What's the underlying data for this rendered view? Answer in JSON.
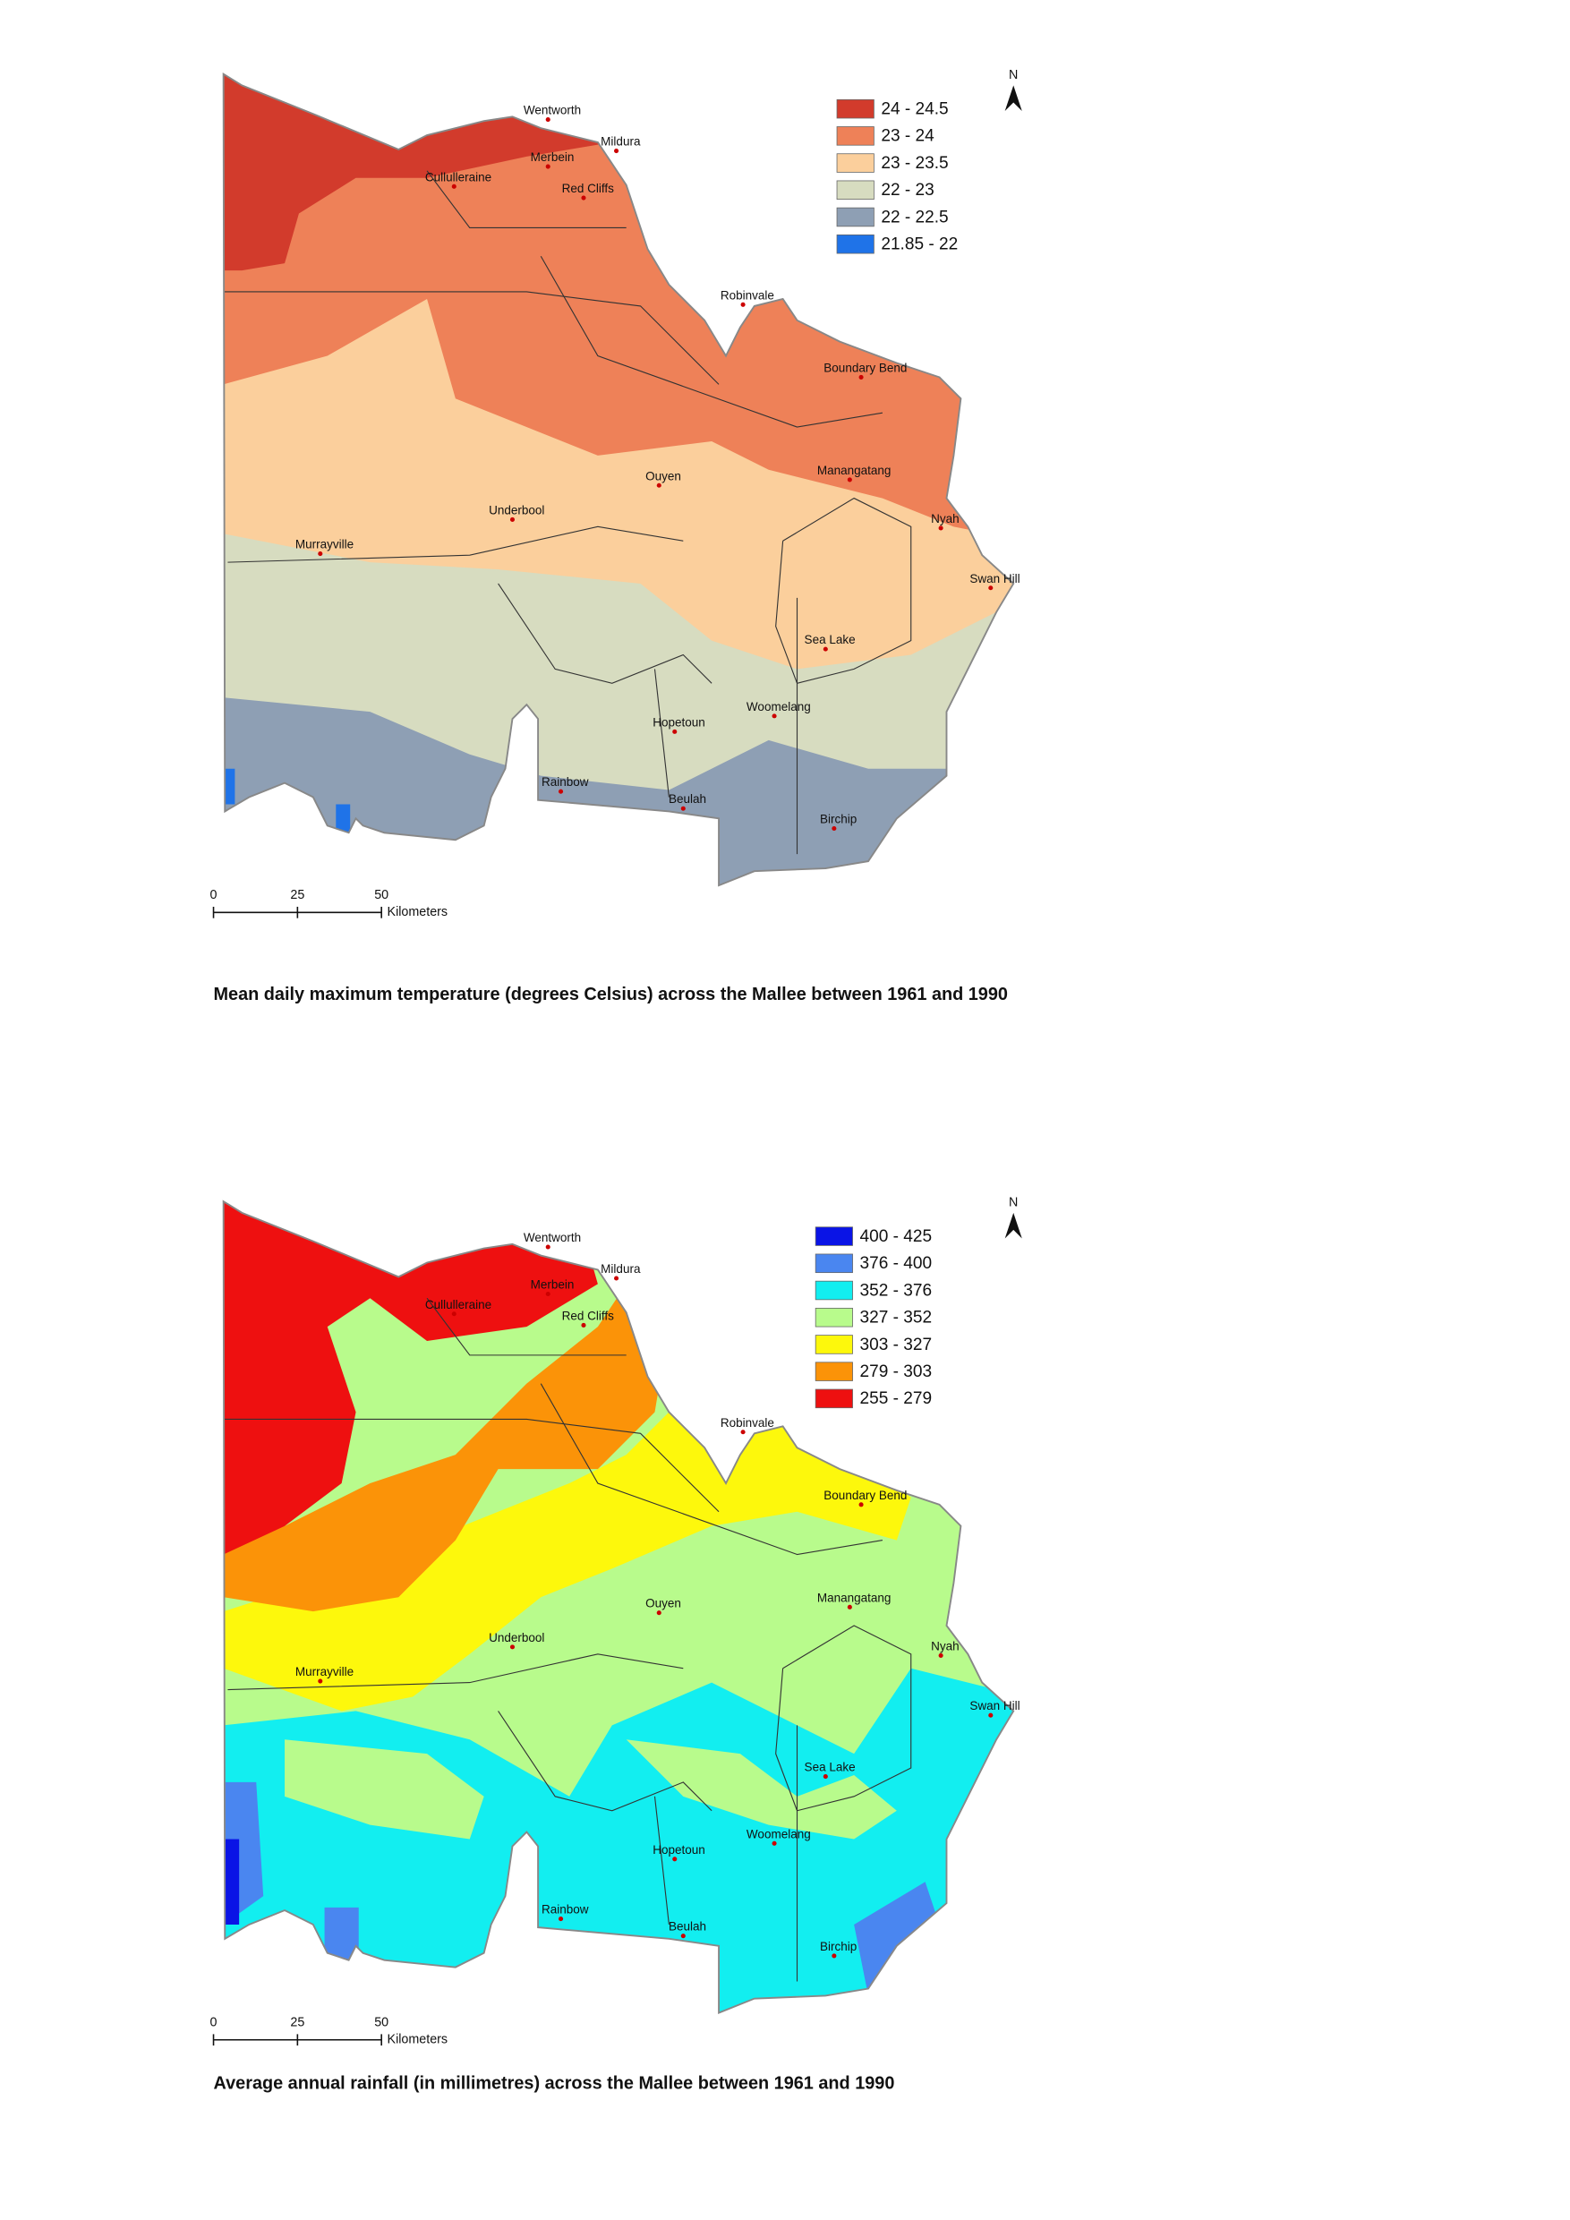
{
  "maps": [
    {
      "north": "N",
      "legend": [
        {
          "label": "24 - 24.5",
          "color": "#d23b2c"
        },
        {
          "label": "23 - 24",
          "color": "#ee8158"
        },
        {
          "label": "23 - 23.5",
          "color": "#fbcf9c"
        },
        {
          "label": "22 - 23",
          "color": "#d7dcc0"
        },
        {
          "label": "22 - 22.5",
          "color": "#8e9fb4"
        },
        {
          "label": "21.85 - 22",
          "color": "#1f73e8"
        }
      ],
      "places": [
        "Wentworth",
        "Mildura",
        "Merbein",
        "Cullulleraine",
        "Red Cliffs",
        "Robinvale",
        "Boundary Bend",
        "Ouyen",
        "Manangatang",
        "Underbool",
        "Nyah",
        "Murrayville",
        "Swan Hill",
        "Sea Lake",
        "Woomelang",
        "Hopetoun",
        "Rainbow",
        "Beulah",
        "Birchip"
      ],
      "scale": {
        "ticks": [
          0,
          25,
          50
        ],
        "unit": "Kilometers"
      },
      "caption": "Mean daily maximum temperature (degrees Celsius) across the Mallee between 1961 and 1990"
    },
    {
      "north": "N",
      "legend": [
        {
          "label": "400 - 425",
          "color": "#0a14e6"
        },
        {
          "label": "376 - 400",
          "color": "#4a86f0"
        },
        {
          "label": "352 - 376",
          "color": "#12eef0"
        },
        {
          "label": "327 - 352",
          "color": "#b8fb8c"
        },
        {
          "label": "303 - 327",
          "color": "#fdf80c"
        },
        {
          "label": "279 - 303",
          "color": "#fb9308"
        },
        {
          "label": "255 - 279",
          "color": "#ee1010"
        }
      ],
      "places": [
        "Wentworth",
        "Mildura",
        "Merbein",
        "Cullulleraine",
        "Red Cliffs",
        "Robinvale",
        "Boundary Bend",
        "Ouyen",
        "Manangatang",
        "Underbool",
        "Nyah",
        "Murrayville",
        "Swan Hill",
        "Sea Lake",
        "Woomelang",
        "Hopetoun",
        "Rainbow",
        "Beulah",
        "Birchip"
      ],
      "scale": {
        "ticks": [
          0,
          25,
          50
        ],
        "unit": "Kilometers"
      },
      "caption": "Average annual rainfall (in millimetres) across the Mallee between 1961 and 1990"
    }
  ]
}
